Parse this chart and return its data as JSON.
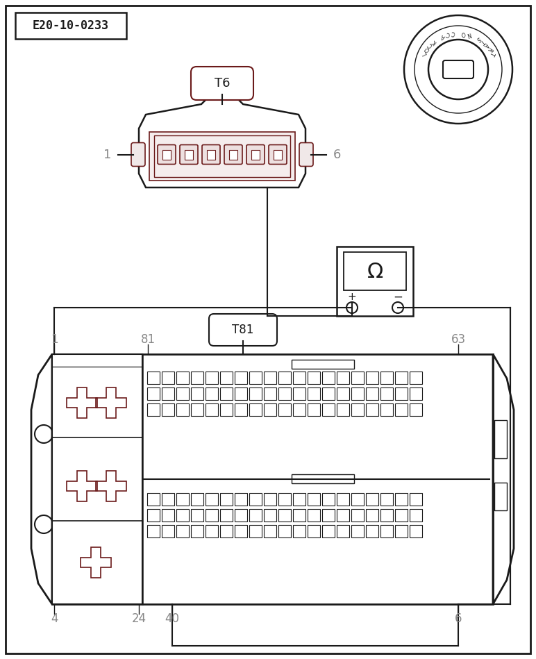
{
  "title_label": "E20-10-0233",
  "connector_T6_label": "T6",
  "connector_T81_label": "T81",
  "bg_color": "#ffffff",
  "line_color": "#1a1a1a",
  "dark_red": "#6b1a1a",
  "gray": "#888888",
  "lock_chars": [
    "L",
    "O",
    "C",
    "K",
    " ",
    "A",
    "C",
    "C",
    " ",
    "O",
    "N",
    " ",
    "S",
    "T",
    "A",
    "R",
    "T"
  ]
}
